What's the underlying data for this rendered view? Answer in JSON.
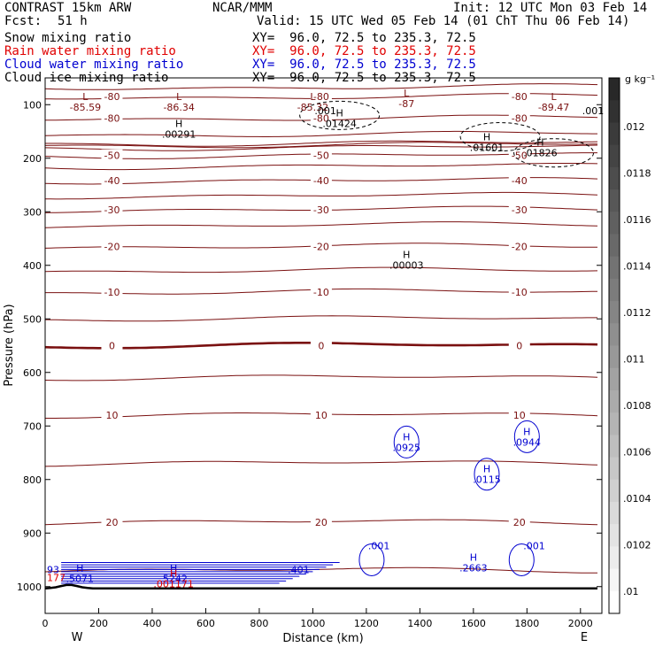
{
  "header": {
    "model": "CONTRAST 15km ARW",
    "center": "NCAR/MMM",
    "init": "Init: 12 UTC Mon 03 Feb 14",
    "fcst_label": "Fcst:",
    "fcst_value": "51 h",
    "valid": "Valid: 15 UTC Wed 05 Feb 14 (01 ChT Thu 06 Feb 14)"
  },
  "fields": [
    {
      "name": "Snow mixing ratio",
      "xy": "XY=  96.0, 72.5 to 235.3, 72.5",
      "color": "#000000"
    },
    {
      "name": "Rain water mixing ratio",
      "xy": "XY=  96.0, 72.5 to 235.3, 72.5",
      "color": "#e00000"
    },
    {
      "name": "Cloud water mixing ratio",
      "xy": "XY=  96.0, 72.5 to 235.3, 72.5",
      "color": "#0000d0"
    },
    {
      "name": "Cloud ice mixing ratio",
      "xy": "XY=  96.0, 72.5 to 235.3, 72.5",
      "color": "#000000"
    }
  ],
  "colorbar": {
    "unit": "g kg⁻¹",
    "ticks": [
      ".012",
      ".0118",
      ".0116",
      ".0114",
      ".0112",
      ".011",
      ".0108",
      ".0106",
      ".0104",
      ".0102",
      ".01"
    ]
  },
  "chart_data": {
    "type": "contour",
    "xlabel": "Distance (km)",
    "ylabel": "Pressure (hPa)",
    "xlim": [
      0,
      2080
    ],
    "ylim": [
      1050,
      50
    ],
    "xticks": [
      0,
      200,
      400,
      600,
      800,
      1000,
      1200,
      1400,
      1600,
      1800,
      2000
    ],
    "yticks": [
      100,
      200,
      300,
      400,
      500,
      600,
      700,
      800,
      900,
      1000
    ],
    "x_end_labels": {
      "left": "W",
      "right": "E"
    },
    "temperature_contours": [
      {
        "value": -85,
        "p": 67,
        "label": ""
      },
      {
        "value": -80,
        "p": 85,
        "label": "-80"
      },
      {
        "value": -80,
        "p": 125,
        "label": "-80"
      },
      {
        "value": -75,
        "p": 155,
        "label": ""
      },
      {
        "value": -70,
        "p": 175,
        "label": ""
      },
      {
        "value": -60,
        "p": 172,
        "label": ""
      },
      {
        "value": -55,
        "p": 180,
        "label": ""
      },
      {
        "value": -50,
        "p": 195,
        "label": "-50"
      },
      {
        "value": -45,
        "p": 215,
        "label": ""
      },
      {
        "value": -40,
        "p": 242,
        "label": "-40"
      },
      {
        "value": -35,
        "p": 270,
        "label": ""
      },
      {
        "value": -30,
        "p": 296,
        "label": "-30"
      },
      {
        "value": -25,
        "p": 325,
        "label": ""
      },
      {
        "value": -20,
        "p": 365,
        "label": "-20"
      },
      {
        "value": -15,
        "p": 410,
        "label": ""
      },
      {
        "value": -10,
        "p": 450,
        "label": "-10"
      },
      {
        "value": -5,
        "p": 500,
        "label": ""
      },
      {
        "value": 0,
        "p": 550,
        "label": "0"
      },
      {
        "value": 5,
        "p": 610,
        "label": ""
      },
      {
        "value": 10,
        "p": 680,
        "label": "10"
      },
      {
        "value": 15,
        "p": 770,
        "label": ""
      },
      {
        "value": 20,
        "p": 880,
        "label": "20"
      },
      {
        "value": 25,
        "p": 970,
        "label": ""
      }
    ],
    "extrema": [
      {
        "type": "L",
        "value": "-85.59",
        "x": 150,
        "p": 95,
        "color": "#7a1010"
      },
      {
        "type": "L",
        "value": "-86.34",
        "x": 500,
        "p": 95,
        "color": "#7a1010"
      },
      {
        "type": "L",
        "value": "-85.32",
        "x": 1000,
        "p": 95,
        "color": "#7a1010"
      },
      {
        "type": "L",
        "value": "-87",
        "x": 1350,
        "p": 88,
        "color": "#7a1010"
      },
      {
        "type": "L",
        "value": "-89.47",
        "x": 1900,
        "p": 95,
        "color": "#7a1010"
      },
      {
        "type": "H",
        "value": ".00291",
        "x": 500,
        "p": 145,
        "color": "#000000"
      },
      {
        "type": "H",
        "value": ".01424",
        "x": 1100,
        "p": 125,
        "color": "#000000"
      },
      {
        "type": "H",
        "value": ".01601",
        "x": 1650,
        "p": 170,
        "color": "#000000"
      },
      {
        "type": "H",
        "value": ".01826",
        "x": 1850,
        "p": 180,
        "color": "#000000"
      },
      {
        "type": "H",
        "value": ".00003",
        "x": 1350,
        "p": 390,
        "color": "#000000"
      },
      {
        "type": "H",
        "value": ".0925",
        "x": 1350,
        "p": 730,
        "color": "#0000d0"
      },
      {
        "type": "H",
        "value": ".0944",
        "x": 1800,
        "p": 720,
        "color": "#0000d0"
      },
      {
        "type": "H",
        "value": ".0115",
        "x": 1650,
        "p": 790,
        "color": "#0000d0"
      },
      {
        "type": "H",
        "value": ".2663",
        "x": 1600,
        "p": 955,
        "color": "#0000d0"
      },
      {
        "type": "H",
        "value": ".5071",
        "x": 130,
        "p": 975,
        "color": "#0000d0"
      },
      {
        "type": "H",
        "value": ".5242",
        "x": 480,
        "p": 975,
        "color": "#0000d0"
      },
      {
        "type": "H",
        "value": ".001171",
        "x": 480,
        "p": 985,
        "color": "#e00000"
      }
    ],
    "other_labels": [
      {
        "text": ".001",
        "x": 1000,
        "p": 118,
        "color": "#000000"
      },
      {
        "text": ".001",
        "x": 2000,
        "p": 118,
        "color": "#000000"
      },
      {
        "text": ".001",
        "x": 1200,
        "p": 930,
        "color": "#0000d0"
      },
      {
        "text": ".001",
        "x": 1780,
        "p": 930,
        "color": "#0000d0"
      },
      {
        "text": ".401",
        "x": 900,
        "p": 975,
        "color": "#0000d0"
      },
      {
        "text": "93",
        "x": 0,
        "p": 975,
        "color": "#0000d0"
      },
      {
        "text": "177",
        "x": 0,
        "p": 990,
        "color": "#e00000"
      }
    ]
  }
}
